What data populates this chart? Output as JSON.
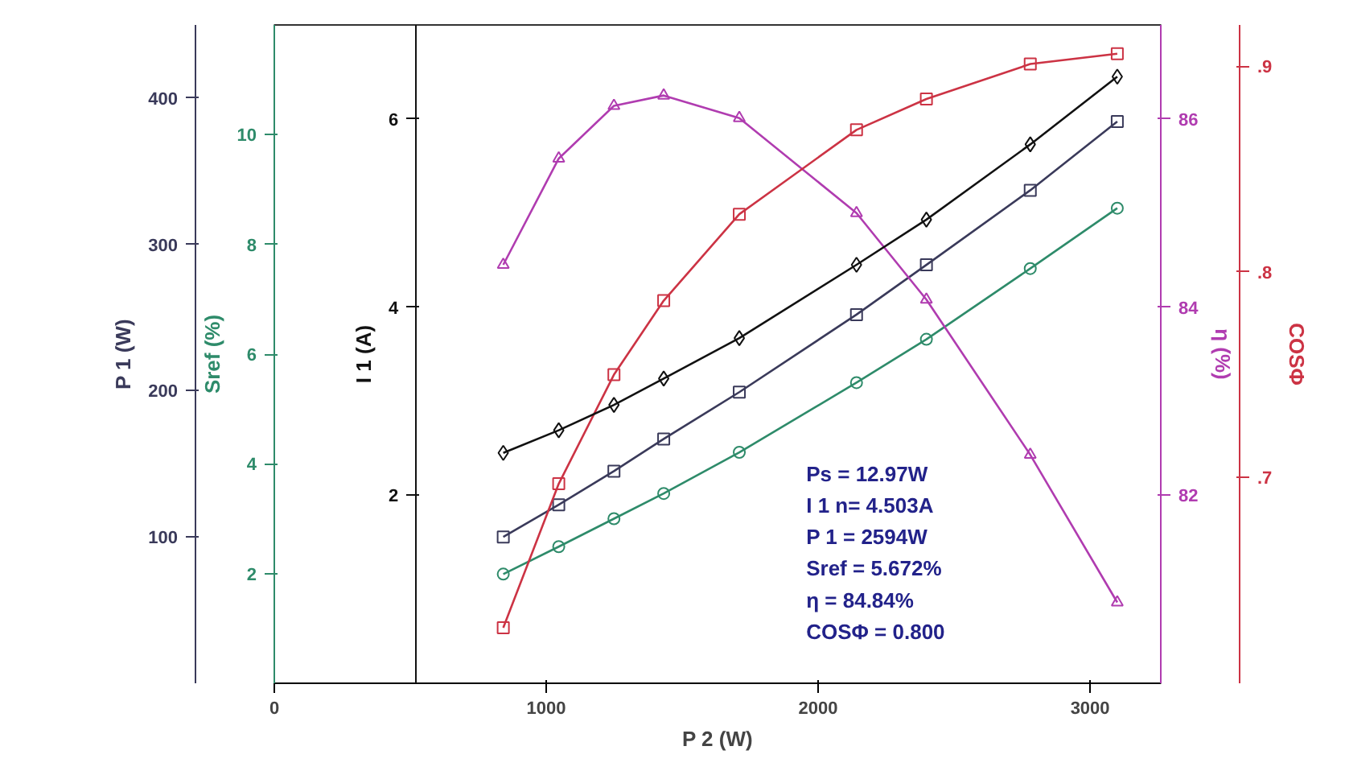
{
  "chart_data": [
    {
      "type": "line",
      "xlabel": "P 2 (W)",
      "ylabel": "Sref (%)",
      "y2label": "P 1 (W)",
      "x": [
        842,
        1046,
        1249,
        1432,
        1710,
        2141,
        2398,
        2780,
        3100
      ],
      "xlim": [
        0,
        3260
      ],
      "xticks": [
        0,
        1000,
        2000,
        3000
      ],
      "ylim": [
        0,
        12
      ],
      "yticks": [
        2,
        4,
        6,
        8,
        10
      ],
      "y2lim": [
        0,
        450
      ],
      "y2ticks": [
        100,
        200,
        300,
        400
      ],
      "series": [
        {
          "color": "#3a3a5a",
          "marker": "square",
          "axis": "y2",
          "values": [
            100,
            122,
            145,
            167,
            199,
            252,
            286,
            337,
            384
          ]
        },
        {
          "color": "#2e8b6a",
          "marker": "circle",
          "axis": "y",
          "values": [
            1.99,
            2.49,
            3.0,
            3.46,
            4.21,
            5.48,
            6.27,
            7.56,
            8.66
          ]
        }
      ],
      "grid": false,
      "annotations": [
        "Ps = 12.97W",
        "I 1 n= 4.503A",
        "P 1 = 2594W",
        "Sref = 5.672%",
        "η = 84.84%",
        "COSΦ = 0.800"
      ]
    },
    {
      "type": "line",
      "ylabel": "η (%)",
      "y2label": "COSΦ",
      "tick_labels": "y",
      "x": [
        842,
        1046,
        1249,
        1432,
        1710,
        2141,
        2398,
        2780,
        3100
      ],
      "xlim": [
        0,
        3260
      ],
      "ylim": [
        80,
        87
      ],
      "yticks": [
        82,
        84,
        86
      ],
      "y2lim": [
        0.6,
        0.92
      ],
      "y2ticks": [
        {
          "value": 0.7,
          "label": ".7"
        },
        {
          "value": 0.8,
          "label": ".8"
        },
        {
          "value": 0.9,
          "label": ".9"
        }
      ],
      "series": [
        {
          "color": "#b03cb0",
          "marker": "triangle",
          "axis": "y",
          "values": [
            84.45,
            85.58,
            86.14,
            86.25,
            86.01,
            85.0,
            84.08,
            82.43,
            80.86
          ]
        },
        {
          "color": "#cc3344",
          "marker": "square",
          "axis": "y2",
          "values": [
            0.627,
            0.697,
            0.75,
            0.786,
            0.828,
            0.869,
            0.884,
            0.901,
            0.906
          ]
        }
      ]
    },
    {
      "type": "line",
      "ylabel": "I 1 (A)",
      "tick_labels": "y",
      "x": [
        842,
        1046,
        1249,
        1432,
        1710,
        2141,
        2398,
        2780,
        3100
      ],
      "xlim": [
        0,
        3260
      ],
      "ylim": [
        0,
        7
      ],
      "yticks": [
        2,
        4,
        6
      ],
      "series": [
        {
          "color": "#111111",
          "marker": "diamond",
          "axis": "y",
          "values": [
            2.45,
            2.69,
            2.96,
            3.24,
            3.67,
            4.45,
            4.93,
            5.73,
            6.45
          ]
        }
      ]
    }
  ]
}
